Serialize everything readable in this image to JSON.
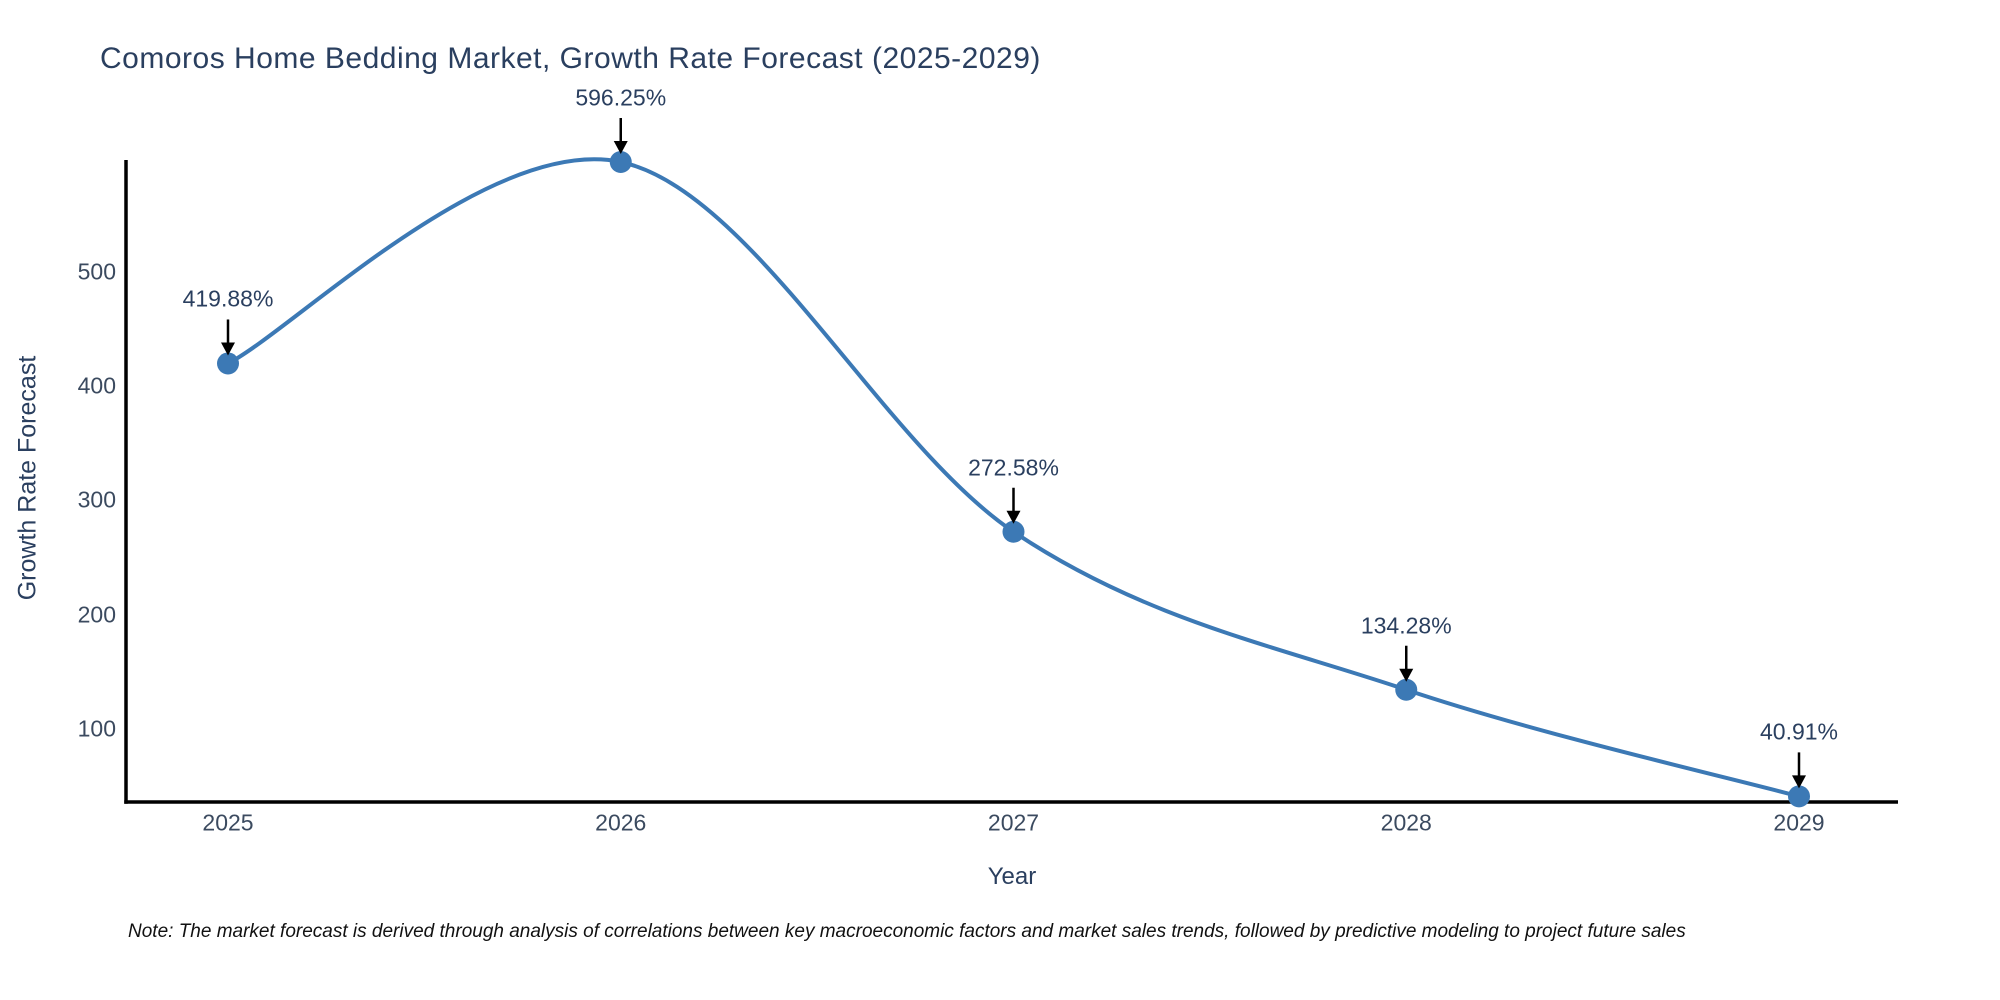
{
  "title": "Comoros Home Bedding Market, Growth Rate Forecast (2025-2029)",
  "note": "Note: The market forecast is derived through analysis of correlations between key macroeconomic factors and market sales trends, followed by predictive modeling to project future sales",
  "chart_data": {
    "type": "line",
    "title": "Comoros Home Bedding Market, Growth Rate Forecast (2025-2029)",
    "xlabel": "Year",
    "ylabel": "Growth Rate Forecast",
    "categories": [
      "2025",
      "2026",
      "2027",
      "2028",
      "2029"
    ],
    "series": [
      {
        "name": "Growth Rate Forecast",
        "values": [
          419.88,
          596.25,
          272.58,
          134.28,
          40.91
        ]
      }
    ],
    "point_labels": [
      "419.88%",
      "596.25%",
      "272.58%",
      "134.28%",
      "40.91%"
    ],
    "yticks": [
      100,
      200,
      300,
      400,
      500
    ],
    "ylim": [
      36,
      598
    ],
    "line_shape": "spline",
    "markers": true,
    "grid": false,
    "legend": false,
    "annotations_arrow": true,
    "colors": {
      "line": "#3c79b5",
      "marker": "#3c79b5",
      "axis_line": "#000000",
      "arrow": "#000000",
      "title_text": "#2a3f5f",
      "tick_text": "#3b4a5f",
      "note_text": "#111111",
      "background": "#ffffff"
    }
  }
}
